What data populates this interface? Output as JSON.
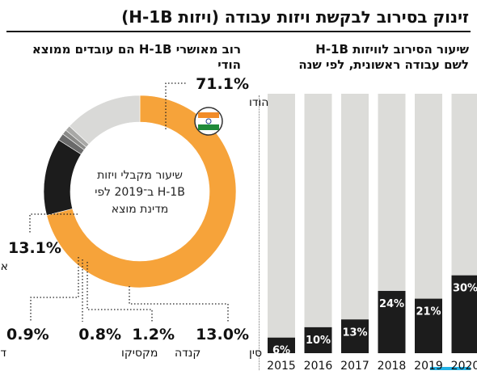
{
  "title": "זינוק בסירוב לבקשת ויזות עבודה (ויזות H-1B)",
  "bar_chart": {
    "subtitle_line1": "שיעור הסירוב לוויזות H-1B",
    "subtitle_line2": "לשם עבודה ראשונית, לפי שנה"
  },
  "donut_chart": {
    "subtitle": "רוב מאושרי H-1B הם עובדים ממוצא הודי",
    "center_line1": "שיעור מקבלי ויזות",
    "center_line2": "H-1B ב־2019 לפי",
    "center_line3": "מדינת מוצא",
    "flag_icon": "india-flag-icon"
  },
  "colors": {
    "bar_background": "#dcdcd9",
    "bar_value": "#1c1c1c",
    "india": "#f6a33a",
    "china": "#1c1c1c",
    "other": "#d9d9d7",
    "canada": "#6a6a6a",
    "mexico": "#8a8a88",
    "korea": "#a8a8a6",
    "accent": "#22b2e6"
  },
  "chart_data": [
    {
      "type": "bar",
      "categories": [
        "2015",
        "2016",
        "2017",
        "2018",
        "2019",
        "2020"
      ],
      "values": [
        6,
        10,
        13,
        24,
        21,
        30
      ],
      "value_labels": [
        "6%",
        "10%",
        "13%",
        "24%",
        "21%",
        "30%"
      ],
      "ylim": [
        0,
        100
      ],
      "title": "שיעור הסירוב לוויזות H-1B לשם עבודה ראשונית, לפי שנה",
      "xlabel": "",
      "ylabel": ""
    },
    {
      "type": "pie",
      "title": "רוב מאושרי H-1B הם עובדים ממוצא הודי",
      "slices": [
        {
          "key": "india",
          "label": "הודו",
          "value": 71.1,
          "value_label": "71.1%"
        },
        {
          "key": "china",
          "label": "סין",
          "value": 13.0,
          "value_label": "13.0%"
        },
        {
          "key": "canada",
          "label": "קנדה",
          "value": 1.2,
          "value_label": "1.2%"
        },
        {
          "key": "mexico",
          "label": "מקסיקו",
          "value": 0.8,
          "value_label": "0.8%"
        },
        {
          "key": "korea",
          "label": "ד.קוריאה",
          "value": 0.9,
          "value_label": "0.9%"
        },
        {
          "key": "other",
          "label": "אחר",
          "value": 13.1,
          "value_label": "13.1%"
        }
      ]
    }
  ]
}
